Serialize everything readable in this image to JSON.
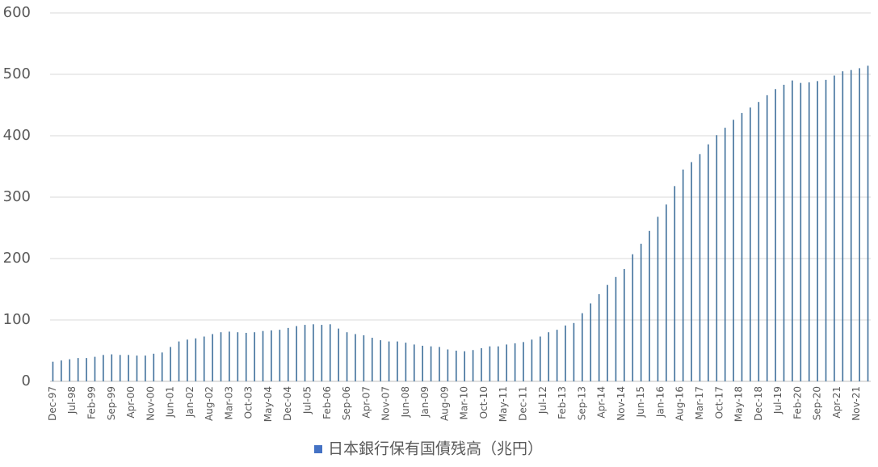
{
  "chart_data": {
    "type": "bar",
    "legend": "日本銀行保有国債残高（兆円）",
    "legend_position": "bottom",
    "color": "#41719c",
    "grid": true,
    "ylim": [
      0,
      600
    ],
    "yticks": [
      0,
      100,
      200,
      300,
      400,
      500,
      600
    ],
    "xlim": [
      "1997-11",
      "2022-04"
    ],
    "xticks": [
      {
        "value": "1997-12",
        "label": "Dec-97"
      },
      {
        "value": "1998-07",
        "label": "Jul-98"
      },
      {
        "value": "1999-02",
        "label": "Feb-99"
      },
      {
        "value": "1999-09",
        "label": "Sep-99"
      },
      {
        "value": "2000-04",
        "label": "Apr-00"
      },
      {
        "value": "2000-11",
        "label": "Nov-00"
      },
      {
        "value": "2001-06",
        "label": "Jun-01"
      },
      {
        "value": "2002-01",
        "label": "Jan-02"
      },
      {
        "value": "2002-08",
        "label": "Aug-02"
      },
      {
        "value": "2003-03",
        "label": "Mar-03"
      },
      {
        "value": "2003-10",
        "label": "Oct-03"
      },
      {
        "value": "2004-05",
        "label": "May-04"
      },
      {
        "value": "2004-12",
        "label": "Dec-04"
      },
      {
        "value": "2005-07",
        "label": "Jul-05"
      },
      {
        "value": "2006-02",
        "label": "Feb-06"
      },
      {
        "value": "2006-09",
        "label": "Sep-06"
      },
      {
        "value": "2007-04",
        "label": "Apr-07"
      },
      {
        "value": "2007-11",
        "label": "Nov-07"
      },
      {
        "value": "2008-06",
        "label": "Jun-08"
      },
      {
        "value": "2009-01",
        "label": "Jan-09"
      },
      {
        "value": "2009-08",
        "label": "Aug-09"
      },
      {
        "value": "2010-03",
        "label": "Mar-10"
      },
      {
        "value": "2010-10",
        "label": "Oct-10"
      },
      {
        "value": "2011-05",
        "label": "May-11"
      },
      {
        "value": "2011-12",
        "label": "Dec-11"
      },
      {
        "value": "2012-07",
        "label": "Jul-12"
      },
      {
        "value": "2013-02",
        "label": "Feb-13"
      },
      {
        "value": "2013-09",
        "label": "Sep-13"
      },
      {
        "value": "2014-04",
        "label": "Apr-14"
      },
      {
        "value": "2014-11",
        "label": "Nov-14"
      },
      {
        "value": "2015-06",
        "label": "Jun-15"
      },
      {
        "value": "2016-01",
        "label": "Jan-16"
      },
      {
        "value": "2016-08",
        "label": "Aug-16"
      },
      {
        "value": "2017-03",
        "label": "Mar-17"
      },
      {
        "value": "2017-10",
        "label": "Oct-17"
      },
      {
        "value": "2018-05",
        "label": "May-18"
      },
      {
        "value": "2018-12",
        "label": "Dec-18"
      },
      {
        "value": "2019-07",
        "label": "Jul-19"
      },
      {
        "value": "2020-02",
        "label": "Feb-20"
      },
      {
        "value": "2020-09",
        "label": "Sep-20"
      },
      {
        "value": "2021-04",
        "label": "Apr-21"
      },
      {
        "value": "2021-11",
        "label": "Nov-21"
      }
    ],
    "x": [
      "1997-12",
      "1998-03",
      "1998-06",
      "1998-09",
      "1998-12",
      "1999-03",
      "1999-06",
      "1999-09",
      "1999-12",
      "2000-03",
      "2000-06",
      "2000-09",
      "2000-12",
      "2001-03",
      "2001-06",
      "2001-09",
      "2001-12",
      "2002-03",
      "2002-06",
      "2002-09",
      "2002-12",
      "2003-03",
      "2003-06",
      "2003-09",
      "2003-12",
      "2004-03",
      "2004-06",
      "2004-09",
      "2004-12",
      "2005-03",
      "2005-06",
      "2005-09",
      "2005-12",
      "2006-03",
      "2006-06",
      "2006-09",
      "2006-12",
      "2007-03",
      "2007-06",
      "2007-09",
      "2007-12",
      "2008-03",
      "2008-06",
      "2008-09",
      "2008-12",
      "2009-03",
      "2009-06",
      "2009-09",
      "2009-12",
      "2010-03",
      "2010-06",
      "2010-09",
      "2010-12",
      "2011-03",
      "2011-06",
      "2011-09",
      "2011-12",
      "2012-03",
      "2012-06",
      "2012-09",
      "2012-12",
      "2013-03",
      "2013-06",
      "2013-09",
      "2013-12",
      "2014-03",
      "2014-06",
      "2014-09",
      "2014-12",
      "2015-03",
      "2015-06",
      "2015-09",
      "2015-12",
      "2016-03",
      "2016-06",
      "2016-09",
      "2016-12",
      "2017-03",
      "2017-06",
      "2017-09",
      "2017-12",
      "2018-03",
      "2018-06",
      "2018-09",
      "2018-12",
      "2019-03",
      "2019-06",
      "2019-09",
      "2019-12",
      "2020-03",
      "2020-06",
      "2020-09",
      "2020-12",
      "2021-03",
      "2021-06",
      "2021-09",
      "2021-12",
      "2022-03"
    ],
    "values": [
      32,
      34,
      36,
      38,
      38,
      40,
      43,
      44,
      43,
      43,
      42,
      42,
      45,
      47,
      56,
      65,
      68,
      70,
      73,
      77,
      80,
      81,
      80,
      79,
      80,
      82,
      83,
      84,
      87,
      90,
      92,
      93,
      92,
      93,
      86,
      80,
      77,
      75,
      71,
      67,
      65,
      65,
      63,
      60,
      58,
      57,
      56,
      52,
      50,
      49,
      51,
      54,
      57,
      57,
      60,
      62,
      64,
      68,
      73,
      80,
      84,
      91,
      95,
      111,
      127,
      142,
      157,
      170,
      183,
      207,
      224,
      245,
      268,
      288,
      318,
      345,
      357,
      370,
      386,
      401,
      413,
      426,
      437,
      446,
      455,
      466,
      476,
      483,
      490,
      486,
      487,
      489,
      491,
      498,
      505,
      507,
      510,
      514
    ]
  }
}
